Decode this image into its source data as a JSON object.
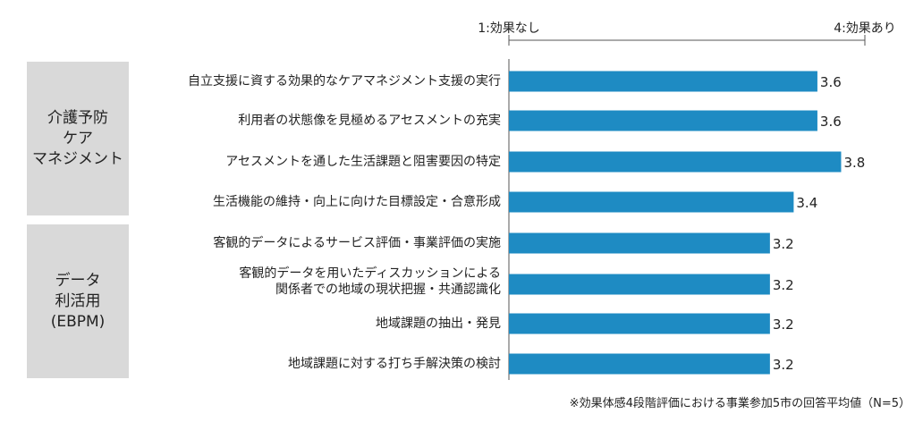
{
  "chart_data": {
    "type": "bar",
    "orientation": "horizontal",
    "scale": {
      "min": 1,
      "max": 4,
      "min_label": "1:効果なし",
      "max_label": "4:効果あり"
    },
    "groups": [
      {
        "label": "介護予防\nケア\nマネジメント",
        "categories": [
          0,
          1,
          2,
          3
        ]
      },
      {
        "label": "データ\n利活用\n(EBPM)",
        "categories": [
          4,
          5,
          6,
          7
        ]
      }
    ],
    "categories": [
      "自立支援に資する効果的なケアマネジメント支援の実行",
      "利用者の状態像を見極めるアセスメントの充実",
      "アセスメントを通した生活課題と阻害要因の特定",
      "生活機能の維持・向上に向けた目標設定・合意形成",
      "客観的データによるサービス評価・事業評価の実施",
      "客観的データを用いたディスカッションによる\n関係者での地域の現状把握・共通認識化",
      "地域課題の抽出・発見",
      "地域課題に対する打ち手解決策の検討"
    ],
    "values": [
      3.6,
      3.6,
      3.8,
      3.4,
      3.2,
      3.2,
      3.2,
      3.2
    ],
    "value_labels": [
      "3.6",
      "3.6",
      "3.8",
      "3.4",
      "3.2",
      "3.2",
      "3.2",
      "3.2"
    ],
    "bar_color": "#1e8bc3",
    "note": "※効果体感4段階評価における事業参加5市の回答平均値（N=5）"
  }
}
